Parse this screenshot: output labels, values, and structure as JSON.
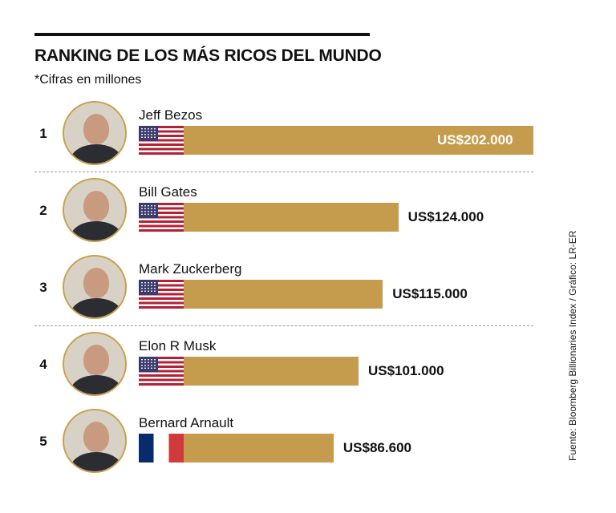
{
  "title": "RANKING DE LOS MÁS RICOS DEL MUNDO",
  "subtitle": "*Cifras en millones",
  "source": "Fuente: Bloomberg Billionaries Index / Gráfico: LR-ER",
  "colors": {
    "bar": "#c59c4d",
    "avatar_ring": "#c9a04c",
    "text": "#111111"
  },
  "chart_data": {
    "type": "bar",
    "orientation": "horizontal",
    "title": "RANKING DE LOS MÁS RICOS DEL MUNDO",
    "subtitle": "*Cifras en millones",
    "xlabel": "",
    "ylabel": "",
    "xlim": [
      0,
      202000
    ],
    "grid": false,
    "categories": [
      "Jeff Bezos",
      "Bill Gates",
      "Mark Zuckerberg",
      "Elon R Musk",
      "Bernard Arnault"
    ],
    "values": [
      202000,
      124000,
      115000,
      101000,
      86600
    ],
    "rows": [
      {
        "rank": "1",
        "name": "Jeff Bezos",
        "value": 202000,
        "label": "US$202.000",
        "flag": "us-flag-icon",
        "photo": "jeff-bezos-photo"
      },
      {
        "rank": "2",
        "name": "Bill Gates",
        "value": 124000,
        "label": "US$124.000",
        "flag": "us-flag-icon",
        "photo": "bill-gates-photo"
      },
      {
        "rank": "3",
        "name": "Mark Zuckerberg",
        "value": 115000,
        "label": "US$115.000",
        "flag": "us-flag-icon",
        "photo": "mark-zuckerberg-photo"
      },
      {
        "rank": "4",
        "name": "Elon R Musk",
        "value": 101000,
        "label": "US$101.000",
        "flag": "us-flag-icon",
        "photo": "elon-musk-photo"
      },
      {
        "rank": "5",
        "name": "Bernard Arnault",
        "value": 86600,
        "label": "US$86.600",
        "flag": "fr-flag-icon",
        "photo": "bernard-arnault-photo"
      }
    ]
  }
}
